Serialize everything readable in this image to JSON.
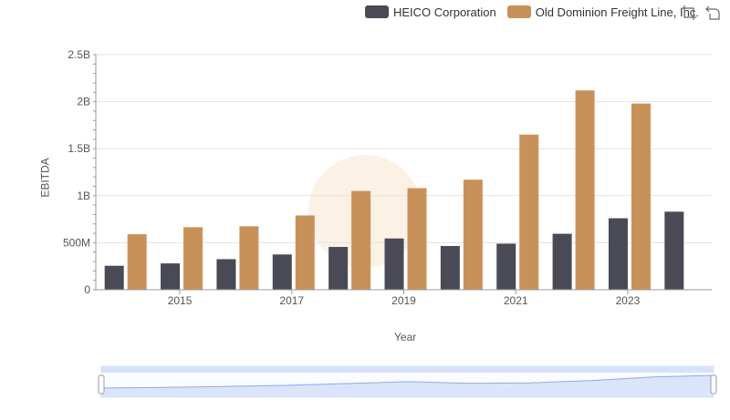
{
  "legend": {
    "items": [
      {
        "label": "HEICO Corporation",
        "color": "#4a4a56"
      },
      {
        "label": "Old Dominion Freight Line, Inc.",
        "color": "#c9915a"
      }
    ]
  },
  "toolbar": {
    "icons": [
      "zoom-select-icon",
      "zoom-reset-icon"
    ]
  },
  "chart_data": {
    "type": "bar",
    "xlabel": "Year",
    "ylabel": "EBITDA",
    "categories": [
      "2014",
      "2015",
      "2016",
      "2017",
      "2018",
      "2019",
      "2020",
      "2021",
      "2022",
      "2023",
      "2024"
    ],
    "x_tick_labels": [
      "2015",
      "2017",
      "2019",
      "2021",
      "2023"
    ],
    "y_tick_labels": [
      "0",
      "500M",
      "1B",
      "1.5B",
      "2B",
      "2.5B"
    ],
    "ylim": [
      0,
      2500000000
    ],
    "grid": true,
    "legend_position": "top-right",
    "series": [
      {
        "name": "HEICO Corporation",
        "color": "#4a4a56",
        "values": [
          255000000,
          280000000,
          325000000,
          375000000,
          455000000,
          545000000,
          465000000,
          490000000,
          595000000,
          760000000,
          830000000
        ]
      },
      {
        "name": "Old Dominion Freight Line, Inc.",
        "color": "#c9915a",
        "values": [
          590000000,
          665000000,
          675000000,
          790000000,
          1050000000,
          1080000000,
          1170000000,
          1650000000,
          2120000000,
          1980000000,
          null
        ]
      }
    ]
  },
  "zoom_slider": {
    "range": [
      0,
      1
    ],
    "fill_color": "#d6e2fb"
  }
}
